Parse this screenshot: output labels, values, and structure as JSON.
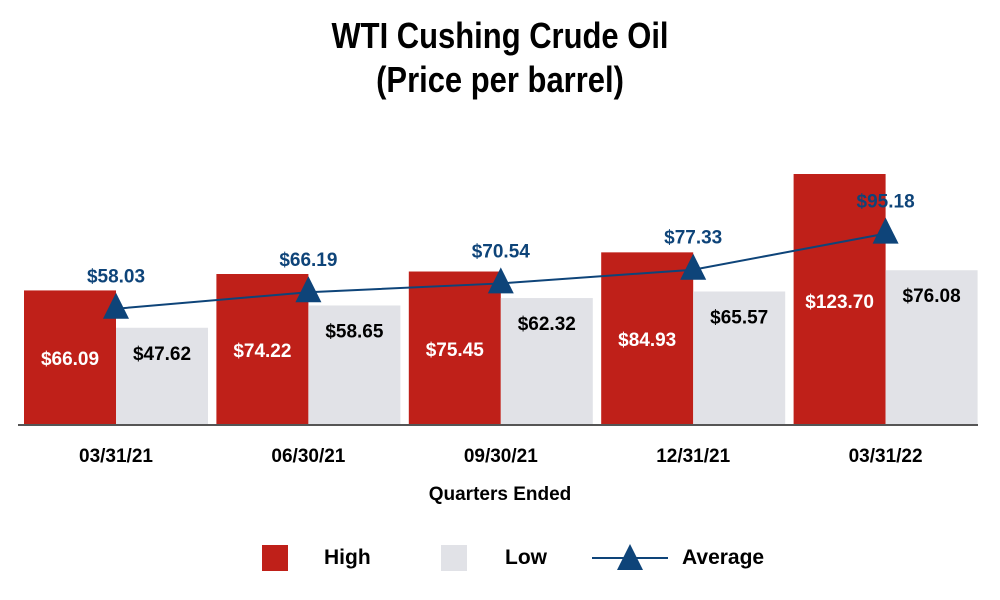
{
  "title_line1": "WTI Cushing Crude Oil",
  "title_line2": "(Price per barrel)",
  "legend": {
    "high": "High",
    "low": "Low",
    "average": "Average"
  },
  "colors": {
    "high": "#bf2019",
    "low": "#e1e2e7",
    "average": "#0e4479",
    "axis": "#555555"
  },
  "chart_data": {
    "type": "bar",
    "title": "WTI Cushing Crude Oil (Price per barrel)",
    "xlabel": "Quarters Ended",
    "ylabel": "",
    "categories": [
      "03/31/21",
      "06/30/21",
      "09/30/21",
      "12/31/21",
      "03/31/22"
    ],
    "series": [
      {
        "name": "High",
        "type": "bar",
        "values": [
          66.09,
          74.22,
          75.45,
          84.93,
          123.7
        ],
        "labels": [
          "$66.09",
          "$74.22",
          "$75.45",
          "$84.93",
          "$123.70"
        ]
      },
      {
        "name": "Low",
        "type": "bar",
        "values": [
          47.62,
          58.65,
          62.32,
          65.57,
          76.08
        ],
        "labels": [
          "$47.62",
          "$58.65",
          "$62.32",
          "$65.57",
          "$76.08"
        ]
      },
      {
        "name": "Average",
        "type": "line",
        "values": [
          58.03,
          66.19,
          70.54,
          77.33,
          95.18
        ],
        "labels": [
          "$58.03",
          "$66.19",
          "$70.54",
          "$77.33",
          "$95.18"
        ]
      }
    ],
    "ylim": [
      0,
      123.7
    ],
    "grid": false,
    "legend_position": "bottom"
  }
}
